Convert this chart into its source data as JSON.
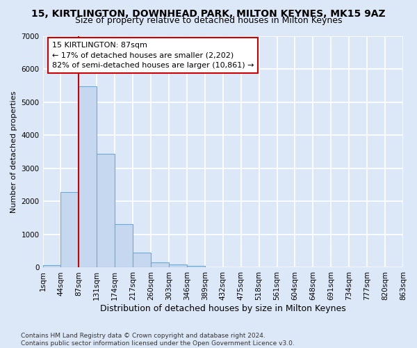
{
  "title": "15, KIRTLINGTON, DOWNHEAD PARK, MILTON KEYNES, MK15 9AZ",
  "subtitle": "Size of property relative to detached houses in Milton Keynes",
  "xlabel": "Distribution of detached houses by size in Milton Keynes",
  "ylabel": "Number of detached properties",
  "footer_line1": "Contains HM Land Registry data © Crown copyright and database right 2024.",
  "footer_line2": "Contains public sector information licensed under the Open Government Licence v3.0.",
  "bin_labels": [
    "1sqm",
    "44sqm",
    "87sqm",
    "131sqm",
    "174sqm",
    "217sqm",
    "260sqm",
    "303sqm",
    "346sqm",
    "389sqm",
    "432sqm",
    "475sqm",
    "518sqm",
    "561sqm",
    "604sqm",
    "648sqm",
    "691sqm",
    "734sqm",
    "777sqm",
    "820sqm",
    "863sqm"
  ],
  "bar_values": [
    80,
    2270,
    5470,
    3440,
    1310,
    460,
    155,
    95,
    50,
    0,
    0,
    0,
    0,
    0,
    0,
    0,
    0,
    0,
    0,
    0
  ],
  "bar_color": "#c5d8f0",
  "bar_edgecolor": "#6aaad4",
  "vline_color": "#cc0000",
  "vline_x_index": 2,
  "annotation_line1": "15 KIRTLINGTON: 87sqm",
  "annotation_line2": "← 17% of detached houses are smaller (2,202)",
  "annotation_line3": "82% of semi-detached houses are larger (10,861) →",
  "ylim_min": 0,
  "ylim_max": 7000,
  "yticks": [
    0,
    1000,
    2000,
    3000,
    4000,
    5000,
    6000,
    7000
  ],
  "background_color": "#dce8f8",
  "plot_bg_color": "#dce8f8",
  "grid_color": "#ffffff",
  "title_fontsize": 10,
  "subtitle_fontsize": 9,
  "xlabel_fontsize": 9,
  "ylabel_fontsize": 8,
  "tick_fontsize": 7.5,
  "annotation_fontsize": 8,
  "footer_fontsize": 6.5
}
